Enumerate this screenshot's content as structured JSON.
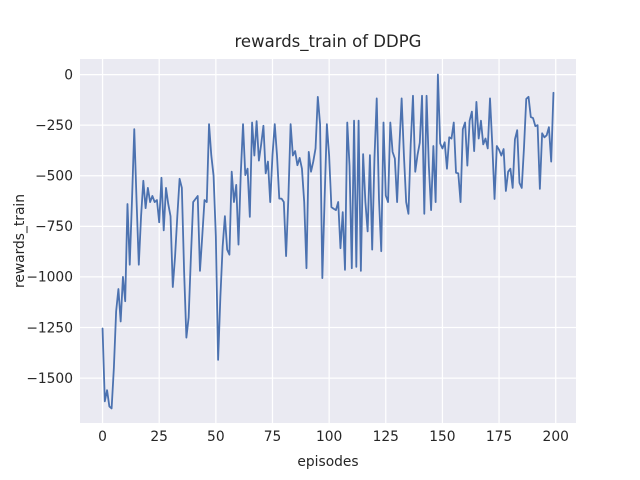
{
  "chart": {
    "title": "rewards_train of DDPG",
    "xlabel": "episodes",
    "ylabel": "rewards_train"
  },
  "colors": {
    "line": "#4c72b0",
    "plot_background": "#eaeaf2",
    "grid": "#ffffff",
    "figure_background": "#ffffff",
    "text": "#262626"
  },
  "chart_data": {
    "type": "line",
    "title": "rewards_train of DDPG",
    "xlabel": "episodes",
    "ylabel": "rewards_train",
    "x_start": 0,
    "x_step": 1,
    "xlim": [
      -9.95,
      208.95
    ],
    "ylim": [
      -1722,
      77
    ],
    "xticks": [
      0,
      25,
      50,
      75,
      100,
      125,
      150,
      175,
      200
    ],
    "yticks": [
      0,
      -250,
      -500,
      -750,
      -1000,
      -1250,
      -1500
    ],
    "xtick_labels": [
      "0",
      "25",
      "50",
      "75",
      "100",
      "125",
      "150",
      "175",
      "200"
    ],
    "ytick_labels": [
      "0",
      "−250",
      "−500",
      "−750",
      "−1000",
      "−1250",
      "−1500"
    ],
    "grid": true,
    "legend_position": "none",
    "series": [
      {
        "name": "rewards_train",
        "values": [
          -1255,
          -1615,
          -1560,
          -1640,
          -1650,
          -1450,
          -1170,
          -1060,
          -1220,
          -1000,
          -1120,
          -640,
          -940,
          -620,
          -270,
          -620,
          -940,
          -700,
          -525,
          -660,
          -560,
          -630,
          -600,
          -630,
          -620,
          -730,
          -510,
          -770,
          -560,
          -640,
          -700,
          -1050,
          -900,
          -700,
          -515,
          -560,
          -975,
          -1300,
          -1200,
          -900,
          -630,
          -615,
          -600,
          -970,
          -800,
          -620,
          -630,
          -245,
          -400,
          -500,
          -800,
          -1410,
          -1100,
          -850,
          -700,
          -865,
          -890,
          -480,
          -630,
          -545,
          -840,
          -490,
          -245,
          -497,
          -465,
          -703,
          -237,
          -400,
          -230,
          -425,
          -345,
          -253,
          -488,
          -430,
          -630,
          -398,
          -245,
          -400,
          -613,
          -613,
          -630,
          -897,
          -613,
          -245,
          -400,
          -378,
          -448,
          -412,
          -465,
          -630,
          -957,
          -382,
          -480,
          -430,
          -365,
          -110,
          -245,
          -1006,
          -615,
          -245,
          -400,
          -655,
          -663,
          -670,
          -630,
          -858,
          -680,
          -965,
          -237,
          -450,
          -957,
          -228,
          -950,
          -228,
          -970,
          -393,
          -630,
          -775,
          -398,
          -865,
          -415,
          -118,
          -615,
          -873,
          -237,
          -598,
          -630,
          -237,
          -382,
          -415,
          -630,
          -353,
          -118,
          -398,
          -630,
          -688,
          -345,
          -105,
          -480,
          -398,
          -337,
          -105,
          -688,
          -105,
          -450,
          -670,
          -353,
          -630,
          0,
          -340,
          -365,
          -335,
          -465,
          -310,
          -316,
          -237,
          -485,
          -488,
          -630,
          -270,
          -237,
          -450,
          -228,
          -183,
          -378,
          -135,
          -316,
          -228,
          -345,
          -316,
          -365,
          -118,
          -345,
          -615,
          -353,
          -372,
          -400,
          -368,
          -575,
          -480,
          -465,
          -560,
          -320,
          -275,
          -535,
          -560,
          -360,
          -120,
          -110,
          -210,
          -215,
          -255,
          -250,
          -565,
          -290,
          -310,
          -300,
          -260,
          -430,
          -90
        ]
      }
    ]
  }
}
